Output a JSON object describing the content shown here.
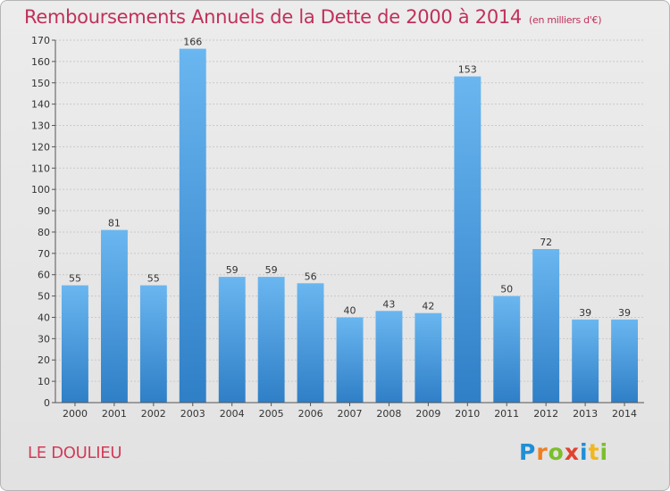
{
  "title": "Remboursements Annuels de la Dette de 2000 à 2014",
  "unit": "(en milliers d'€)",
  "commune": "LE DOULIEU",
  "logo": {
    "text": "Proxiti",
    "letters": [
      "P",
      "r",
      "o",
      "x",
      "i",
      "t",
      "i"
    ],
    "colors": [
      "#1f8fd6",
      "#f07e1f",
      "#7bbf2a",
      "#e2412f",
      "#1f8fd6",
      "#f0b71f",
      "#7bbf2a"
    ]
  },
  "colors": {
    "bar_light": "#6ab6f0",
    "bar_dark": "#2f7fc7",
    "title": "#c0305a",
    "commune": "#d23c58"
  },
  "chart_data": {
    "type": "bar",
    "categories": [
      "2000",
      "2001",
      "2002",
      "2003",
      "2004",
      "2005",
      "2006",
      "2007",
      "2008",
      "2009",
      "2010",
      "2011",
      "2012",
      "2013",
      "2014"
    ],
    "values": [
      55,
      81,
      55,
      166,
      59,
      59,
      56,
      40,
      43,
      42,
      153,
      50,
      72,
      39,
      39
    ],
    "data_labels": [
      "55",
      "81",
      "55",
      "166",
      "59",
      "59",
      "56",
      "40",
      "43",
      "42",
      "153",
      "50",
      "72",
      "39",
      "39"
    ],
    "yticks": [
      0,
      10,
      20,
      30,
      40,
      50,
      60,
      70,
      80,
      90,
      100,
      110,
      120,
      130,
      140,
      150,
      160,
      170
    ],
    "ylim": [
      0,
      170
    ],
    "grid": true
  }
}
